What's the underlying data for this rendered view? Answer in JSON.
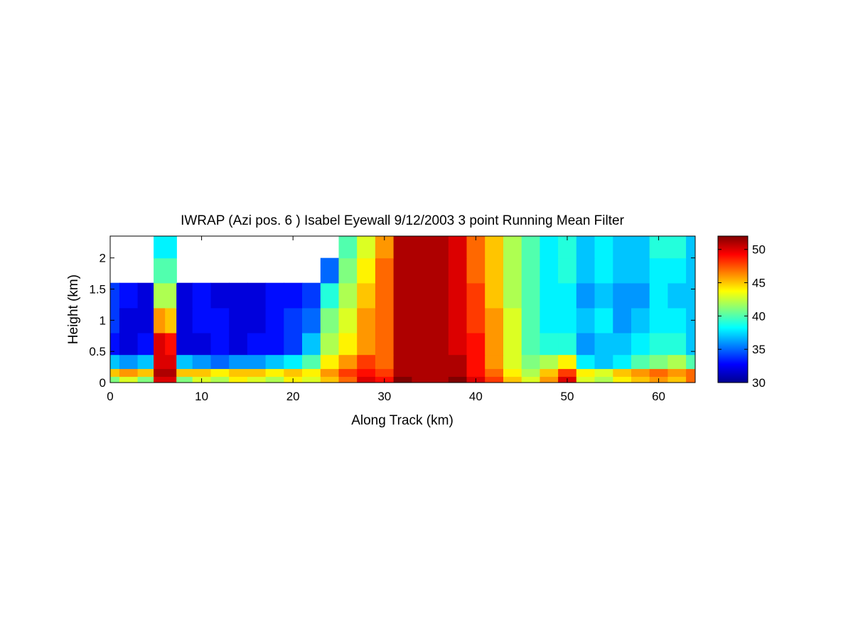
{
  "chart_data": {
    "type": "heatmap",
    "title": "IWRAP (Azi pos. 6 ) Isabel Eyewall 9/12/2003 3 point Running Mean Filter",
    "xlabel": "Along Track (km)",
    "ylabel": "Height (km)",
    "xlim": [
      0,
      64
    ],
    "ylim": [
      0,
      2.35
    ],
    "x_ticks": [
      0,
      10,
      20,
      30,
      40,
      50,
      60
    ],
    "x_tick_labels": [
      "0",
      "10",
      "20",
      "30",
      "40",
      "50",
      "60"
    ],
    "y_ticks": [
      0,
      0.5,
      1,
      1.5,
      2
    ],
    "y_tick_labels": [
      "0",
      "0.5",
      "1",
      "1.5",
      "2"
    ],
    "colorbar": {
      "range": [
        30,
        52
      ],
      "ticks": [
        30,
        35,
        40,
        45,
        50
      ],
      "tick_labels": [
        "30",
        "35",
        "40",
        "45",
        "50"
      ],
      "colormap": "jet",
      "colors": [
        "#00008f",
        "#0000ff",
        "#00ffff",
        "#ffff00",
        "#ff0000",
        "#800000"
      ]
    },
    "x": [
      0,
      2,
      4,
      5.5,
      6.5,
      8,
      10,
      12,
      14,
      16,
      18,
      20,
      22,
      24,
      26,
      28,
      30,
      32,
      34,
      36,
      38,
      40,
      42,
      44,
      46,
      48,
      50,
      52,
      54,
      56,
      58,
      60,
      62,
      64
    ],
    "y": [
      0.05,
      0.15,
      0.3,
      0.6,
      1.0,
      1.4,
      1.8,
      2.2
    ],
    "z": [
      [
        41,
        43,
        41,
        50,
        50,
        41,
        43,
        42,
        44,
        43,
        42,
        44,
        43,
        45,
        47,
        50,
        49,
        52,
        51,
        51,
        52,
        50,
        48,
        45,
        43,
        46,
        50,
        43,
        42,
        44,
        45,
        46,
        45,
        47
      ],
      [
        45,
        46,
        45,
        51,
        51,
        45,
        45,
        44,
        45,
        45,
        44,
        45,
        44,
        46,
        48,
        49,
        48,
        51,
        51,
        51,
        51,
        49,
        47,
        44,
        42,
        45,
        48,
        44,
        43,
        45,
        46,
        47,
        46,
        47
      ],
      [
        37,
        36,
        37,
        50,
        50,
        37,
        36,
        35,
        36,
        36,
        37,
        38,
        40,
        44,
        46,
        48,
        47,
        51,
        51,
        51,
        51,
        49,
        46,
        43,
        41,
        42,
        44,
        38,
        37,
        38,
        40,
        41,
        42,
        40
      ],
      [
        33,
        32,
        33,
        50,
        49,
        32,
        32,
        33,
        32,
        33,
        33,
        34,
        37,
        42,
        44,
        46,
        47,
        51,
        51,
        51,
        50,
        49,
        46,
        43,
        40,
        39,
        39,
        36,
        37,
        37,
        38,
        39,
        39,
        37
      ],
      [
        34,
        32,
        32,
        46,
        45,
        32,
        33,
        33,
        32,
        32,
        33,
        34,
        35,
        41,
        43,
        46,
        47,
        51,
        51,
        51,
        50,
        48,
        46,
        43,
        40,
        38,
        38,
        37,
        38,
        36,
        37,
        38,
        38,
        37
      ],
      [
        34,
        33,
        32,
        42,
        42,
        32,
        33,
        32,
        32,
        32,
        33,
        33,
        34,
        39,
        42,
        45,
        47,
        51,
        51,
        51,
        50,
        48,
        45,
        42,
        40,
        38,
        38,
        36,
        37,
        36,
        36,
        38,
        37,
        37
      ],
      [
        null,
        null,
        null,
        40,
        40,
        null,
        null,
        null,
        null,
        null,
        null,
        null,
        null,
        35,
        41,
        44,
        47,
        51,
        51,
        51,
        50,
        47,
        45,
        42,
        40,
        38,
        39,
        37,
        38,
        37,
        37,
        38,
        38,
        37
      ],
      [
        null,
        null,
        null,
        38,
        38,
        null,
        null,
        null,
        null,
        null,
        null,
        null,
        null,
        null,
        40,
        43,
        46,
        51,
        51,
        51,
        50,
        47,
        45,
        42,
        40,
        38,
        39,
        37,
        38,
        37,
        37,
        39,
        39,
        37
      ]
    ]
  }
}
